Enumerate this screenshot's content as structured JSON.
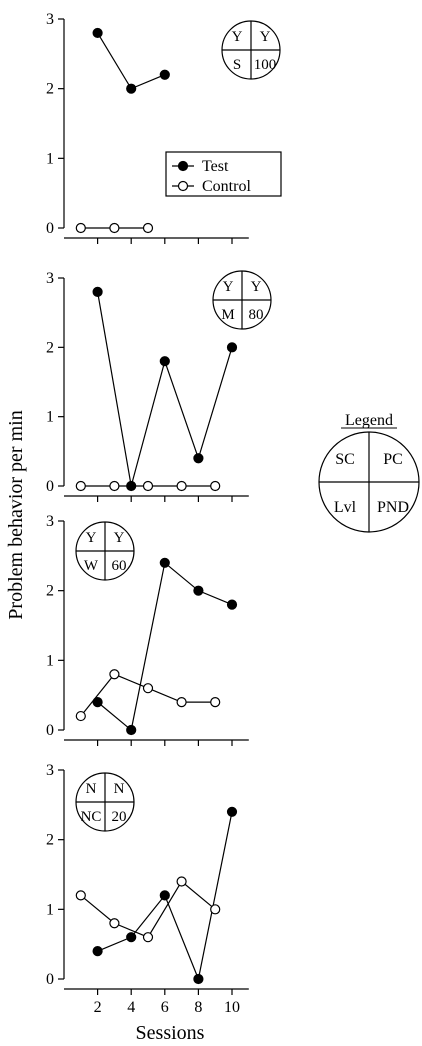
{
  "chart_data": {
    "type": "line",
    "ylabel": "Problem behavior per min",
    "xlabel": "Sessions",
    "legend_entries": [
      "Test",
      "Control"
    ],
    "x_ticks": [
      2,
      4,
      6,
      8,
      10
    ],
    "y_ticks": [
      0,
      1,
      2,
      3
    ],
    "xlim": [
      0,
      11
    ],
    "ylim": [
      0,
      3
    ],
    "key": {
      "title": "Legend",
      "cells": [
        "SC",
        "PC",
        "Lvl",
        "PND"
      ]
    },
    "panels": [
      {
        "badge": [
          "Y",
          "Y",
          "S",
          "100"
        ],
        "series": [
          {
            "name": "Test",
            "x": [
              2,
              4,
              6
            ],
            "y": [
              2.8,
              2.0,
              2.2
            ]
          },
          {
            "name": "Control",
            "x": [
              1,
              3,
              5
            ],
            "y": [
              0,
              0,
              0
            ]
          }
        ]
      },
      {
        "badge": [
          "Y",
          "Y",
          "M",
          "80"
        ],
        "series": [
          {
            "name": "Test",
            "x": [
              2,
              4,
              6,
              8,
              10
            ],
            "y": [
              2.8,
              0,
              1.8,
              0.4,
              2.0
            ]
          },
          {
            "name": "Control",
            "x": [
              1,
              3,
              5,
              7,
              9
            ],
            "y": [
              0,
              0,
              0,
              0,
              0
            ]
          }
        ]
      },
      {
        "badge": [
          "Y",
          "Y",
          "W",
          "60"
        ],
        "series": [
          {
            "name": "Test",
            "x": [
              2,
              4,
              6,
              8,
              10
            ],
            "y": [
              0.4,
              0,
              2.4,
              2.0,
              1.8
            ]
          },
          {
            "name": "Control",
            "x": [
              1,
              3,
              5,
              7,
              9
            ],
            "y": [
              0.2,
              0.8,
              0.6,
              0.4,
              0.4
            ]
          }
        ]
      },
      {
        "badge": [
          "N",
          "N",
          "NC",
          "20"
        ],
        "series": [
          {
            "name": "Test",
            "x": [
              2,
              4,
              6,
              8,
              10
            ],
            "y": [
              0.4,
              0.6,
              1.2,
              0,
              2.4
            ]
          },
          {
            "name": "Control",
            "x": [
              1,
              3,
              5,
              7,
              9
            ],
            "y": [
              1.2,
              0.8,
              0.6,
              1.4,
              1.0
            ]
          }
        ]
      }
    ]
  }
}
